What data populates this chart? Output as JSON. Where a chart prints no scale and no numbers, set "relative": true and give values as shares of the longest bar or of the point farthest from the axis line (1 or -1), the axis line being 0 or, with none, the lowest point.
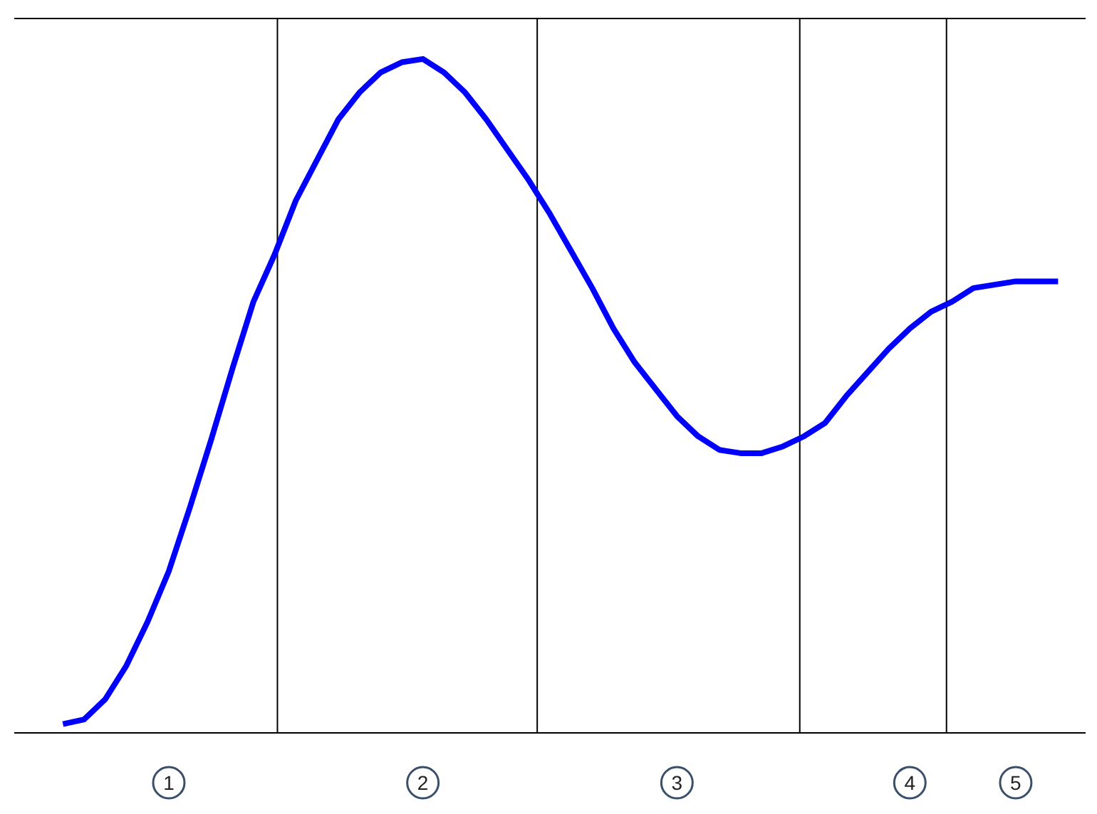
{
  "chart_data": {
    "type": "line",
    "relative": true,
    "grid": false,
    "legend": false,
    "marker": "none",
    "line_style": "solid",
    "categories": [
      null,
      null,
      null,
      null,
      null,
      "1",
      null,
      null,
      null,
      null,
      null,
      null,
      null,
      null,
      null,
      null,
      null,
      "2",
      null,
      null,
      null,
      null,
      null,
      null,
      null,
      null,
      null,
      null,
      null,
      "3",
      null,
      null,
      null,
      null,
      null,
      null,
      null,
      null,
      null,
      null,
      "4",
      null,
      null,
      null,
      null,
      "5",
      null,
      null
    ],
    "series": [
      {
        "color": "#0000ff",
        "values": [
          0.013,
          0.02,
          0.05,
          0.1,
          0.165,
          0.24,
          0.335,
          0.435,
          0.54,
          0.64,
          0.71,
          0.79,
          0.85,
          0.91,
          0.95,
          0.98,
          0.995,
          1,
          0.98,
          0.95,
          0.91,
          0.865,
          0.82,
          0.77,
          0.715,
          0.66,
          0.6,
          0.55,
          0.51,
          0.47,
          0.44,
          0.42,
          0.415,
          0.415,
          0.425,
          0.44,
          0.46,
          0.5,
          0.535,
          0.57,
          0.6,
          0.625,
          0.64,
          0.66,
          0.665,
          0.67,
          0.67,
          0.67
        ]
      }
    ]
  }
}
